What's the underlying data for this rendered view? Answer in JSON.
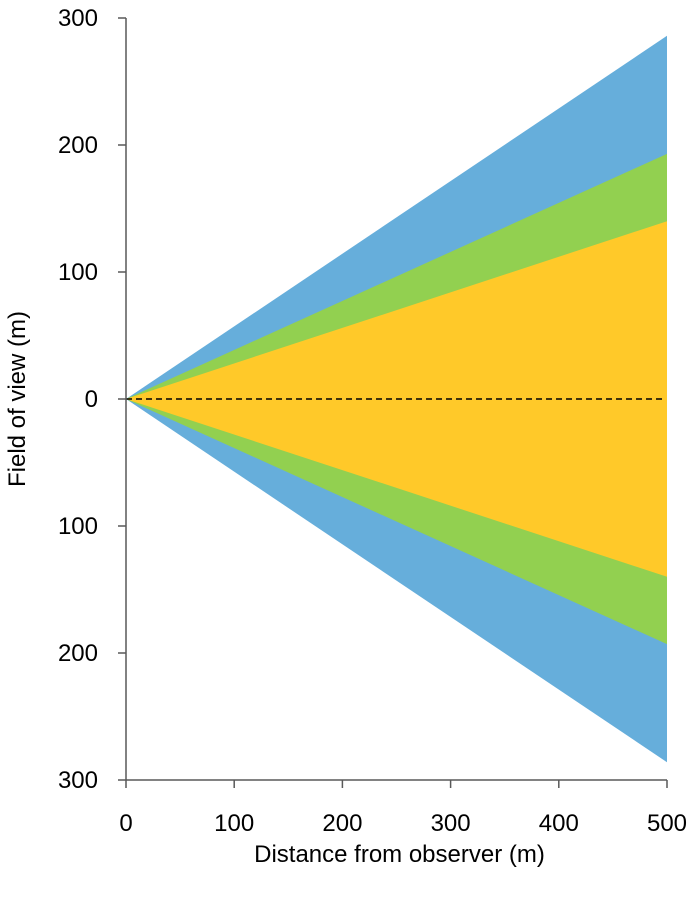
{
  "chart_data": {
    "type": "area",
    "title": "",
    "xlabel": "Distance from observer (m)",
    "ylabel": "Field of view (m)",
    "xlim": [
      0,
      500
    ],
    "ylim": [
      -300,
      300
    ],
    "x_ticks": [
      0,
      100,
      200,
      300,
      400,
      500
    ],
    "x_tick_labels": [
      "0",
      "100",
      "200",
      "300",
      "400",
      "500"
    ],
    "y_ticks": [
      300,
      200,
      100,
      0,
      -100,
      -200,
      -300
    ],
    "y_tick_labels": [
      "300",
      "200",
      "100",
      "0",
      "100",
      "200",
      "300"
    ],
    "grid": false,
    "legend": "none",
    "center_line": {
      "y": 0,
      "style": "dashed",
      "color": "#000000"
    },
    "series": [
      {
        "x": [
          0,
          500
        ],
        "upper": [
          0,
          286
        ],
        "lower": [
          0,
          -286
        ],
        "color": "#66AEDB"
      },
      {
        "x": [
          0,
          500
        ],
        "upper": [
          0,
          193
        ],
        "lower": [
          0,
          -193
        ],
        "color": "#92D050"
      },
      {
        "x": [
          0,
          500
        ],
        "upper": [
          0,
          140
        ],
        "lower": [
          0,
          -140
        ],
        "color": "#FFC929"
      }
    ]
  }
}
